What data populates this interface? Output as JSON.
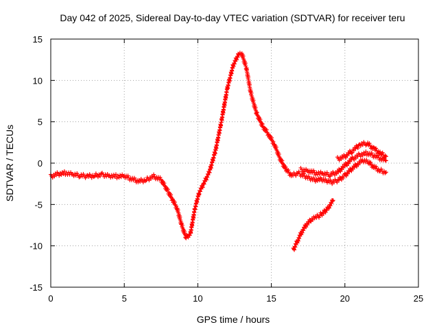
{
  "chart_data": {
    "type": "scatter",
    "title": "Day 042 of 2025, Sidereal Day-to-day VTEC variation (SDTVAR) for receiver teru",
    "xlabel": "GPS time / hours",
    "ylabel": "SDTVAR / TECUs",
    "xlim": [
      0,
      25
    ],
    "ylim": [
      -15,
      15
    ],
    "xticks": [
      0,
      5,
      10,
      15,
      20,
      25
    ],
    "xtick_labels": [
      "0",
      "5",
      "10",
      "15",
      "20",
      "25"
    ],
    "yticks": [
      -15,
      -10,
      -5,
      0,
      5,
      10,
      15
    ],
    "ytick_labels": [
      "-15",
      "-10",
      "-5",
      "0",
      "5",
      "10",
      "15"
    ],
    "grid": true,
    "legend": "none",
    "marker": "+",
    "series": [
      {
        "name": "main-track",
        "color": "#ff0000",
        "x": [
          0.0,
          0.5,
          1.0,
          1.5,
          2.0,
          2.5,
          3.0,
          3.5,
          4.0,
          4.5,
          5.0,
          5.5,
          6.0,
          6.5,
          7.0,
          7.5,
          8.0,
          8.3,
          8.6,
          8.9,
          9.2,
          9.5,
          9.8,
          10.1,
          10.4,
          10.8,
          11.2,
          11.6,
          12.0,
          12.4,
          12.8,
          13.0,
          13.3,
          13.6,
          14.0,
          14.4,
          14.8,
          15.2,
          15.6,
          16.0,
          16.4,
          16.8,
          17.2,
          17.6,
          18.0,
          18.4,
          18.8,
          19.2,
          19.6,
          20.0,
          20.4,
          20.8,
          21.2,
          21.6,
          22.0,
          22.4,
          22.8
        ],
        "y": [
          -1.6,
          -1.3,
          -1.2,
          -1.4,
          -1.5,
          -1.6,
          -1.5,
          -1.4,
          -1.5,
          -1.6,
          -1.6,
          -1.9,
          -2.2,
          -2.0,
          -1.6,
          -2.0,
          -3.5,
          -4.5,
          -5.5,
          -7.5,
          -9.0,
          -8.5,
          -5.5,
          -3.5,
          -2.5,
          -1.0,
          1.5,
          5.0,
          9.0,
          11.8,
          13.3,
          13.2,
          11.5,
          8.5,
          6.0,
          4.5,
          3.5,
          2.3,
          0.5,
          -0.8,
          -1.5,
          -1.2,
          -1.5,
          -1.8,
          -2.0,
          -2.0,
          -2.2,
          -2.3,
          -2.0,
          -1.5,
          -0.8,
          -0.2,
          0.3,
          0.1,
          -0.5,
          -0.9,
          -1.1
        ]
      },
      {
        "name": "upper-track",
        "color": "#ff0000",
        "x": [
          17.0,
          17.5,
          18.0,
          18.5,
          19.0,
          19.5,
          20.0,
          20.5,
          21.0,
          21.5,
          22.0,
          22.5,
          22.8
        ],
        "y": [
          -0.8,
          -0.9,
          -1.2,
          -1.3,
          -1.4,
          -1.1,
          -0.3,
          0.5,
          1.0,
          1.2,
          0.9,
          0.5,
          0.3
        ]
      },
      {
        "name": "top-track",
        "color": "#ff0000",
        "x": [
          19.5,
          20.0,
          20.5,
          21.0,
          21.5,
          22.0,
          22.5,
          22.8
        ],
        "y": [
          0.5,
          0.8,
          1.5,
          2.2,
          2.4,
          1.7,
          1.1,
          0.8
        ]
      },
      {
        "name": "lower-arc",
        "color": "#ff0000",
        "x": [
          16.5,
          16.8,
          17.1,
          17.4,
          17.7,
          18.0,
          18.3,
          18.6,
          18.9,
          19.2
        ],
        "y": [
          -10.5,
          -9.3,
          -8.2,
          -7.4,
          -6.9,
          -6.6,
          -6.3,
          -5.9,
          -5.3,
          -4.5
        ]
      }
    ]
  }
}
